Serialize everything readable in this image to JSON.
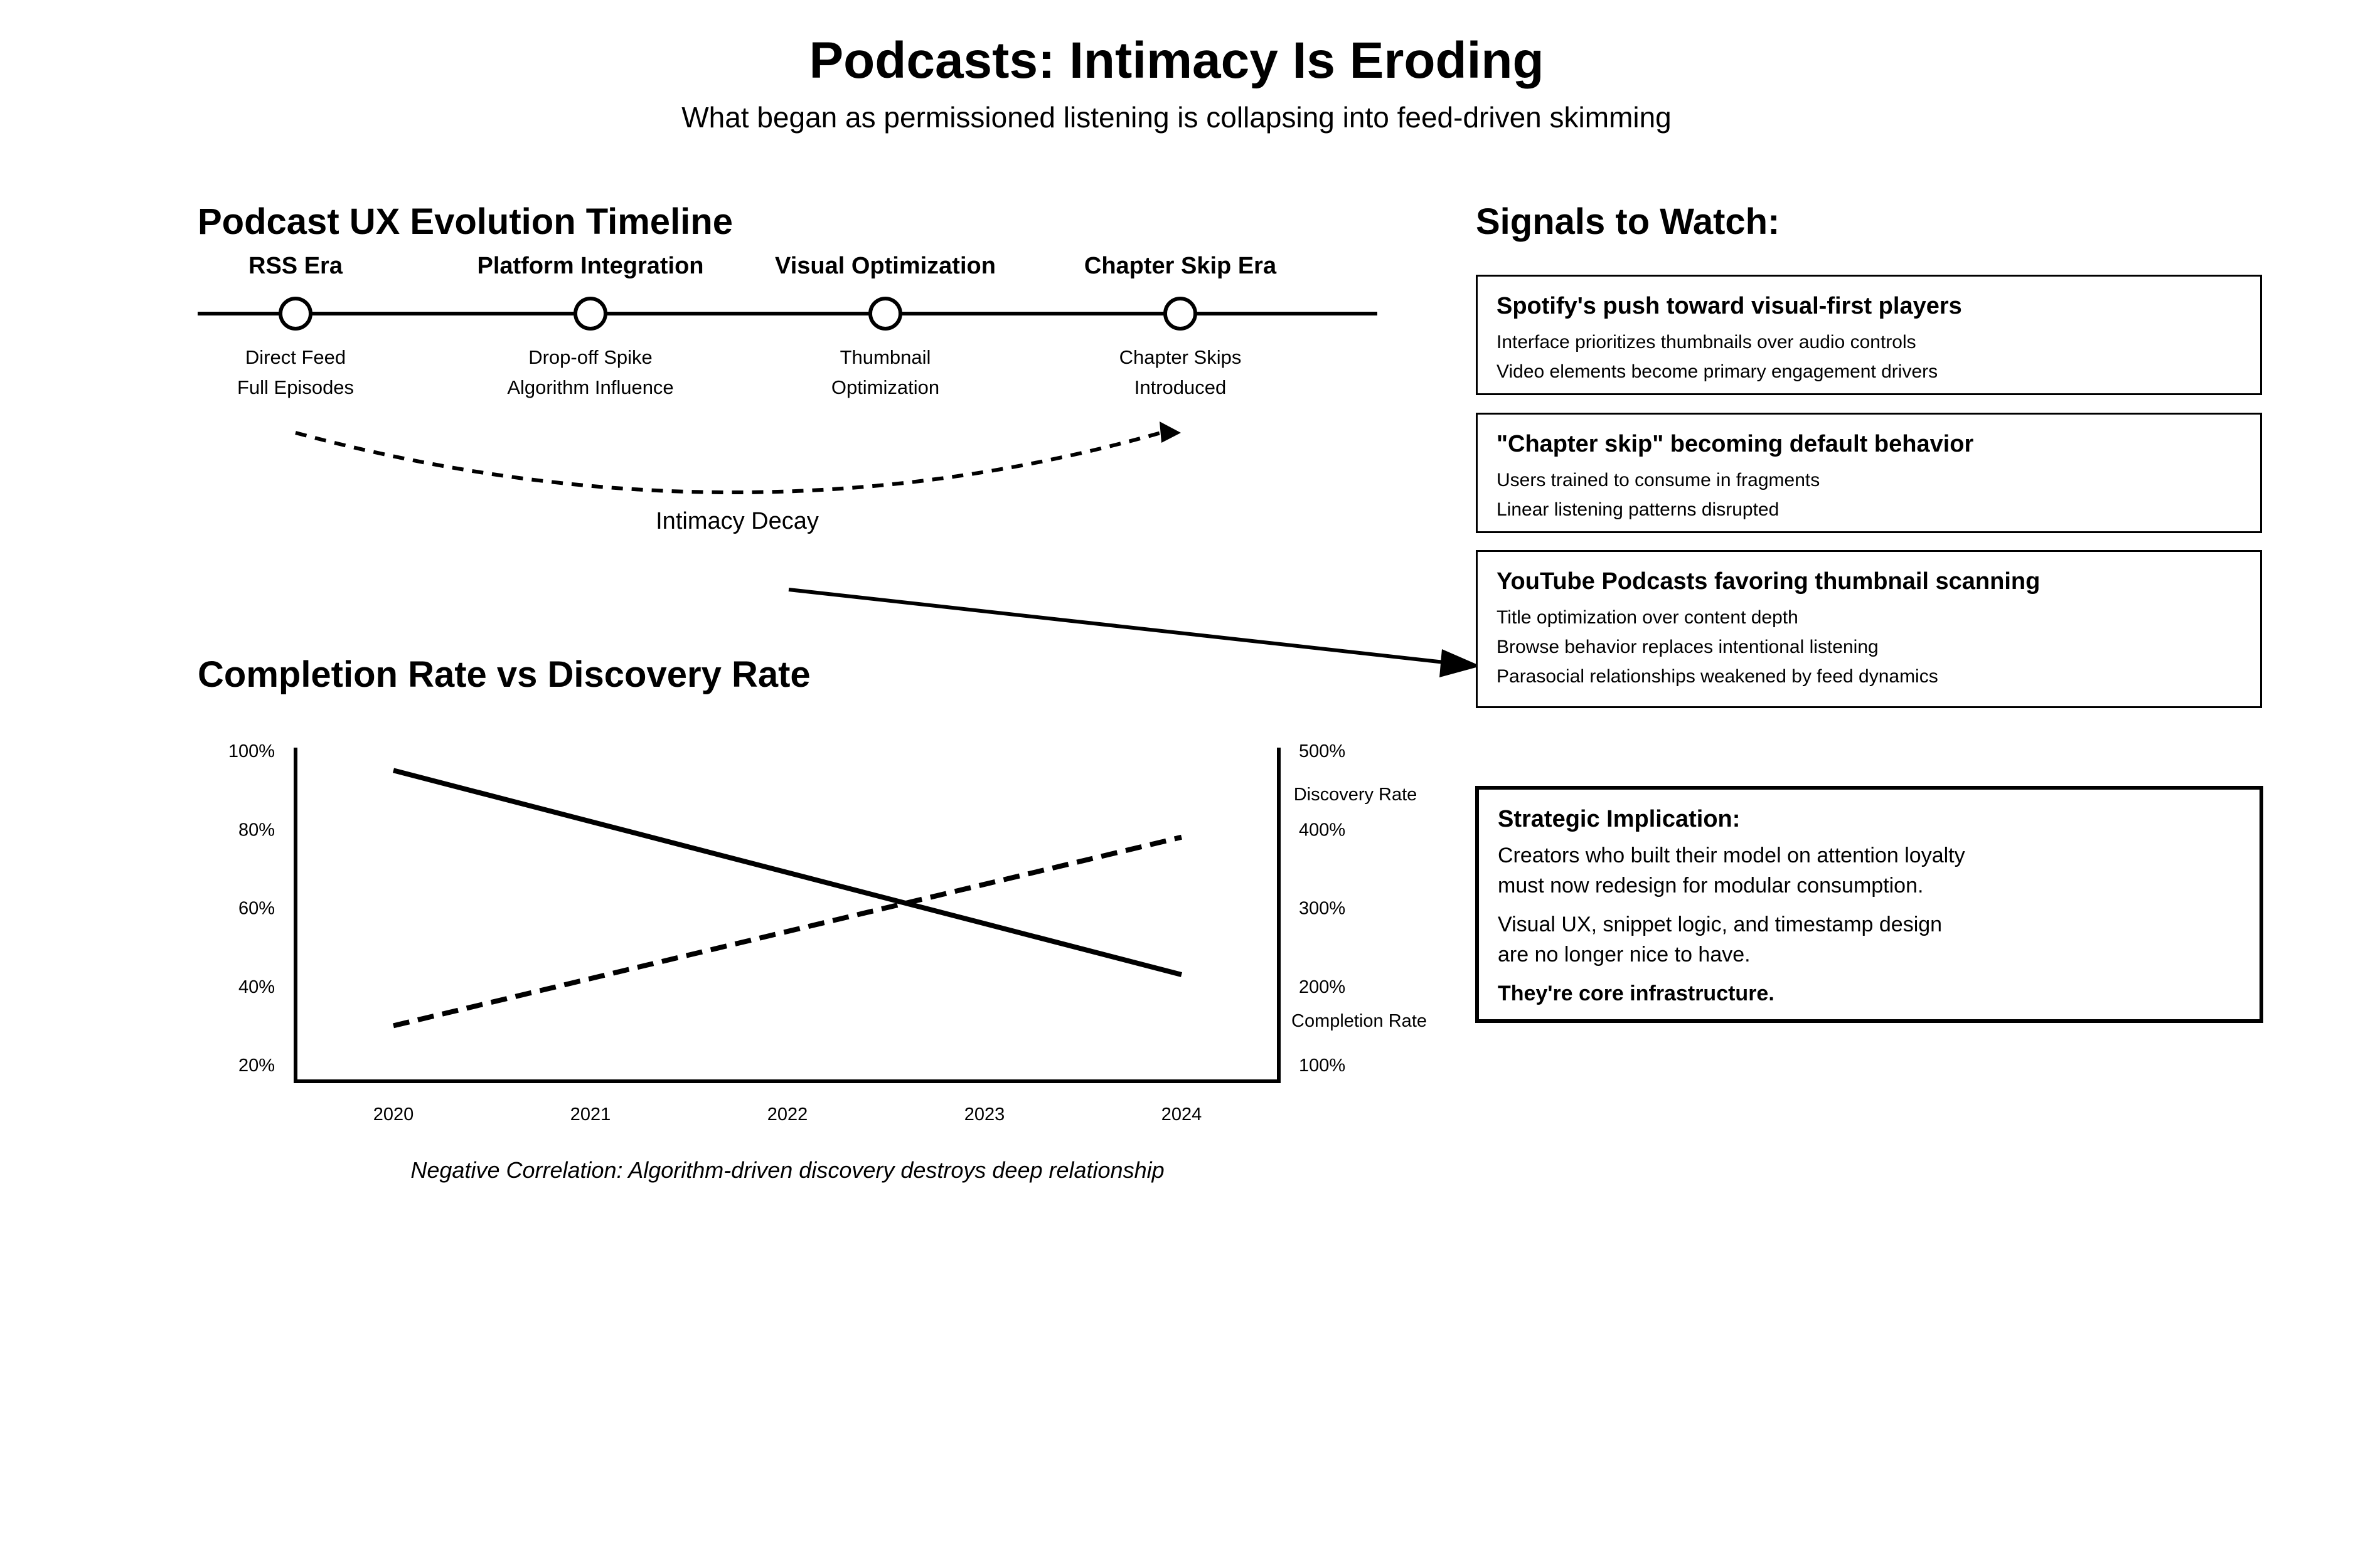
{
  "header": {
    "title": "Podcasts: Intimacy Is Eroding",
    "subtitle": "What began as permissioned listening is collapsing into feed-driven skimming"
  },
  "timeline": {
    "title": "Podcast UX Evolution Timeline",
    "eras": [
      {
        "label": "RSS Era",
        "desc1": "Direct Feed",
        "desc2": "Full Episodes"
      },
      {
        "label": "Platform Integration",
        "desc1": "Drop-off Spike",
        "desc2": "Algorithm Influence"
      },
      {
        "label": "Visual Optimization",
        "desc1": "Thumbnail",
        "desc2": "Optimization"
      },
      {
        "label": "Chapter Skip Era",
        "desc1": "Chapter Skips",
        "desc2": "Introduced"
      }
    ],
    "decay_label": "Intimacy Decay"
  },
  "signals": {
    "title": "Signals to Watch:",
    "items": [
      {
        "title": "Spotify's push toward visual-first players",
        "lines": [
          "Interface prioritizes thumbnails over audio controls",
          "Video elements become primary engagement drivers"
        ]
      },
      {
        "title": "\"Chapter skip\" becoming default behavior",
        "lines": [
          "Users trained to consume in fragments",
          "Linear listening patterns disrupted"
        ]
      },
      {
        "title": "YouTube Podcasts favoring thumbnail scanning",
        "lines": [
          "Title optimization over content depth",
          "Browse behavior replaces intentional listening",
          "Parasocial relationships weakened by feed dynamics"
        ]
      }
    ]
  },
  "strategic": {
    "title": "Strategic Implication:",
    "p1_l1": "Creators who built their model on attention loyalty",
    "p1_l2": "must now redesign for modular consumption.",
    "p2_l1": "Visual UX, snippet logic, and timestamp design",
    "p2_l2": "are no longer nice to have.",
    "p3": "They're core infrastructure."
  },
  "chart_data": {
    "type": "line",
    "title": "Completion Rate vs Discovery Rate",
    "caption": "Negative Correlation: Algorithm-driven discovery destroys deep relationship",
    "x": [
      "2020",
      "2021",
      "2022",
      "2023",
      "2024"
    ],
    "left_axis": {
      "ticks": [
        "100%",
        "80%",
        "60%",
        "40%",
        "20%"
      ],
      "range": [
        20,
        100
      ]
    },
    "right_axis": {
      "ticks": [
        "500%",
        "400%",
        "300%",
        "200%",
        "100%"
      ],
      "range": [
        100,
        500
      ]
    },
    "series": [
      {
        "name": "Completion Rate",
        "axis": "left",
        "style": "solid",
        "values": [
          95,
          82,
          69,
          56,
          43
        ]
      },
      {
        "name": "Discovery Rate",
        "axis": "right",
        "style": "dashed",
        "values": [
          150,
          210,
          270,
          330,
          390
        ]
      }
    ],
    "grid": false
  }
}
